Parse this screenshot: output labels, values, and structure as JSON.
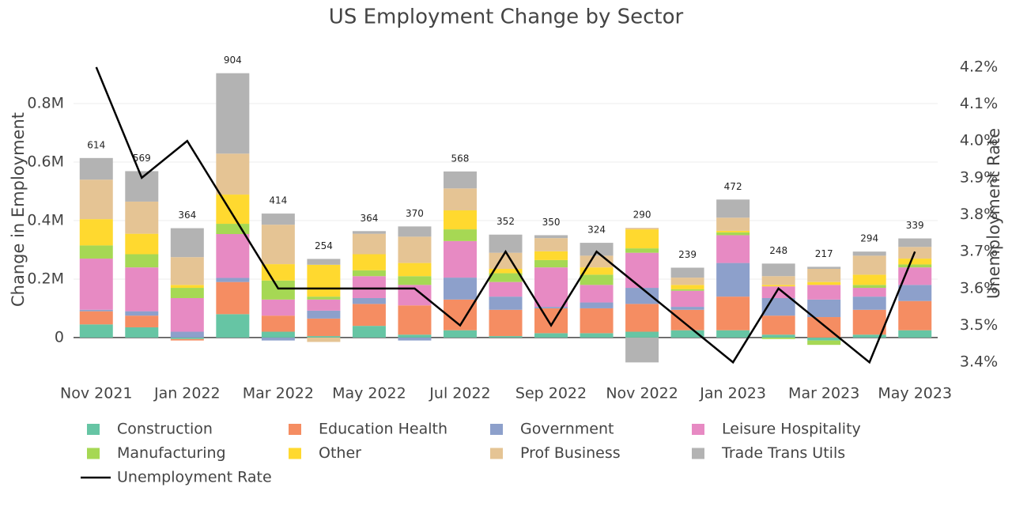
{
  "chart_data": {
    "type": "bar",
    "title": "US Employment Change by Sector",
    "y_label": "Change in Employment",
    "y2_label": "Unemployment Rate",
    "categories": [
      "Nov 2021",
      null,
      "Jan 2022",
      null,
      "Mar 2022",
      null,
      "May 2022",
      null,
      "Jul 2022",
      null,
      "Sep 2022",
      null,
      "Nov 2022",
      null,
      "Jan 2023",
      null,
      "Mar 2023",
      null,
      "May 2023"
    ],
    "series": [
      {
        "name": "Construction",
        "color": "#66c5a4",
        "values": [
          45000,
          35000,
          -5000,
          80000,
          20000,
          5000,
          40000,
          10000,
          25000,
          5000,
          15000,
          15000,
          20000,
          25000,
          25000,
          10000,
          -10000,
          10000,
          25000
        ]
      },
      {
        "name": "Education Health",
        "color": "#f58d62",
        "values": [
          45000,
          40000,
          -5000,
          110000,
          55000,
          60000,
          75000,
          100000,
          105000,
          90000,
          85000,
          85000,
          95000,
          70000,
          115000,
          65000,
          70000,
          85000,
          100000
        ]
      },
      {
        "name": "Government",
        "color": "#8da0cb",
        "values": [
          5000,
          15000,
          20000,
          14000,
          -10000,
          27000,
          20000,
          -10000,
          75000,
          45000,
          5000,
          20000,
          55000,
          10000,
          115000,
          60000,
          60000,
          45000,
          55000
        ]
      },
      {
        "name": "Leisure Hospitality",
        "color": "#e78ac3",
        "values": [
          175000,
          150000,
          115000,
          150000,
          55000,
          38000,
          75000,
          70000,
          125000,
          50000,
          135000,
          60000,
          120000,
          55000,
          95000,
          40000,
          50000,
          30000,
          60000
        ]
      },
      {
        "name": "Manufacturing",
        "color": "#a6d854",
        "values": [
          45000,
          45000,
          35000,
          35000,
          65000,
          10000,
          20000,
          30000,
          40000,
          30000,
          25000,
          35000,
          15000,
          5000,
          10000,
          -5000,
          -15000,
          10000,
          10000
        ]
      },
      {
        "name": "Other",
        "color": "#ffd92f",
        "values": [
          90000,
          70000,
          10000,
          100000,
          56000,
          109000,
          55000,
          45000,
          65000,
          15000,
          30000,
          25000,
          65000,
          15000,
          5000,
          5000,
          10000,
          35000,
          20000
        ]
      },
      {
        "name": "Prof Business",
        "color": "#e5c494",
        "values": [
          135000,
          110000,
          95000,
          140000,
          135000,
          -15000,
          70000,
          90000,
          75000,
          55000,
          45000,
          40000,
          5000,
          25000,
          45000,
          30000,
          45000,
          65000,
          40000
        ]
      },
      {
        "name": "Trade Trans Utils",
        "color": "#b3b3b3",
        "values": [
          74000,
          104000,
          99000,
          275000,
          38000,
          20000,
          9000,
          35000,
          58000,
          62000,
          10000,
          44000,
          -85000,
          34000,
          62000,
          43000,
          7000,
          14000,
          29000
        ]
      },
      {
        "name": "Unemployment Rate",
        "type": "line",
        "axis": "y2",
        "color": "#000000",
        "values": [
          4.2,
          3.9,
          4.0,
          3.8,
          3.6,
          3.6,
          3.6,
          3.6,
          3.5,
          3.7,
          3.5,
          3.7,
          3.6,
          3.5,
          3.4,
          3.6,
          3.5,
          3.4,
          3.7
        ]
      }
    ],
    "totals": [
      614000,
      569000,
      364000,
      904000,
      414000,
      254000,
      364000,
      370000,
      568000,
      352000,
      350000,
      324000,
      290000,
      239000,
      472000,
      248000,
      217000,
      294000,
      339000
    ],
    "value_labels": [
      "614",
      "569",
      "364",
      "904",
      "414",
      "254",
      "364",
      "370",
      "568",
      "352",
      "350",
      "324",
      "290",
      "239",
      "472",
      "248",
      "217",
      "294",
      "339"
    ],
    "ylim": [
      -130000,
      965000
    ],
    "yticks": [
      0,
      {
        "value": 200000,
        "label": "0.2M"
      },
      {
        "value": 400000,
        "label": "0.4M"
      },
      {
        "value": 600000,
        "label": "0.6M"
      },
      {
        "value": 800000,
        "label": "0.8M"
      }
    ],
    "y2lim": [
      3.364,
      4.232
    ],
    "y2ticks": [
      {
        "value": 3.4,
        "label": "3.4%"
      },
      {
        "value": 3.5,
        "label": "3.5%"
      },
      {
        "value": 3.6,
        "label": "3.6%"
      },
      {
        "value": 3.7,
        "label": "3.7%"
      },
      {
        "value": 3.8,
        "label": "3.8%"
      },
      {
        "value": 3.9,
        "label": "3.9%"
      },
      {
        "value": 4.0,
        "label": "4.0%"
      },
      {
        "value": 4.1,
        "label": "4.1%"
      },
      {
        "value": 4.2,
        "label": "4.2%"
      }
    ],
    "grid": true
  }
}
